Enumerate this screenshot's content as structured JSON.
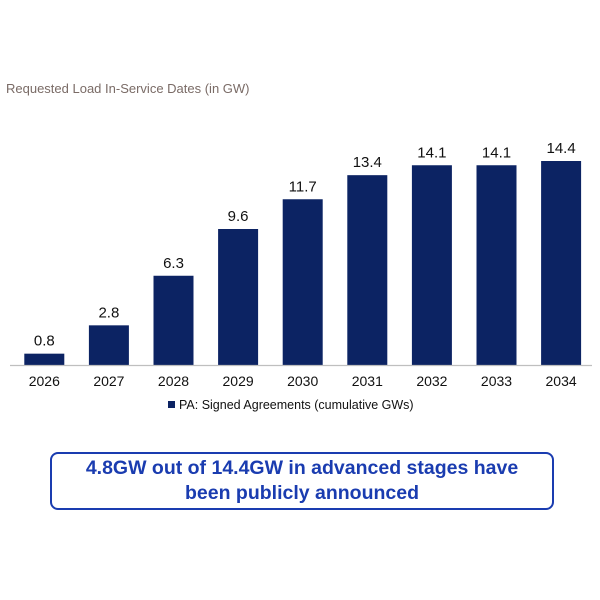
{
  "chart_data": {
    "type": "bar",
    "title": "Requested Load In-Service Dates (in GW)",
    "categories": [
      "2026",
      "2027",
      "2028",
      "2029",
      "2030",
      "2031",
      "2032",
      "2033",
      "2034"
    ],
    "series": [
      {
        "name": "PA: Signed Agreements (cumulative GWs)",
        "values": [
          0.8,
          2.8,
          6.3,
          9.6,
          11.7,
          13.4,
          14.1,
          14.1,
          14.4
        ]
      }
    ],
    "data_labels": [
      "0.8",
      "2.8",
      "6.3",
      "9.6",
      "11.7",
      "13.4",
      "14.1",
      "14.1",
      "14.4"
    ],
    "xlabel": "",
    "ylabel": "",
    "ylim": [
      0,
      14.4
    ],
    "grid": false,
    "legend": "bottom",
    "colors": {
      "bar": "#0c2363",
      "axis": "#bfbfbf"
    }
  },
  "callout": "4.8GW out of 14.4GW in advanced stages have been publicly announced"
}
